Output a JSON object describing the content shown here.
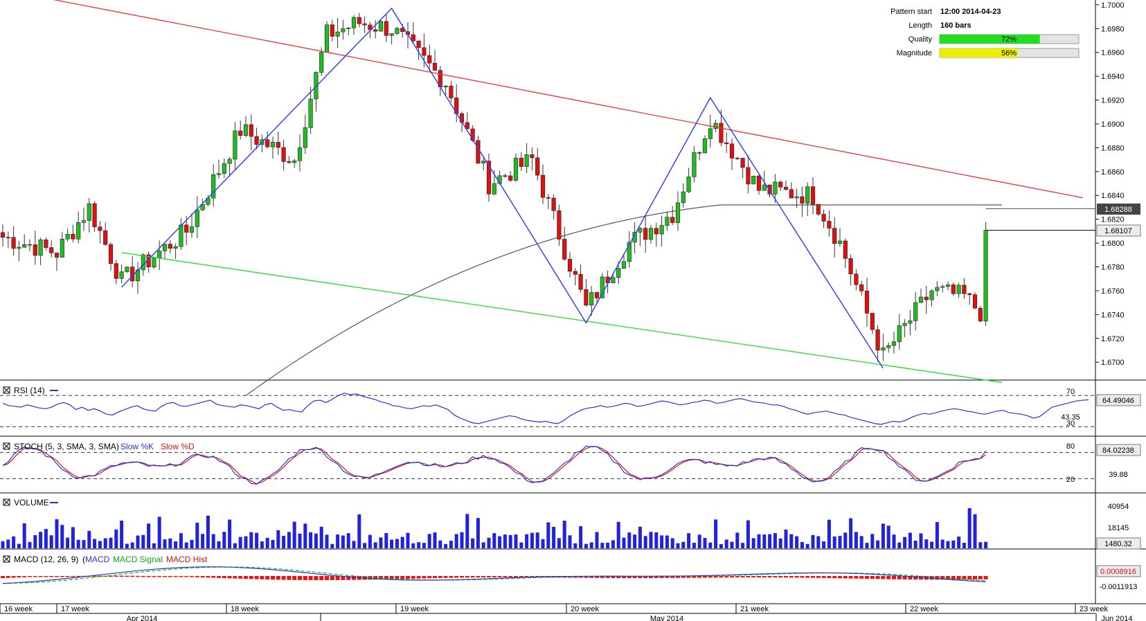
{
  "info": {
    "pattern_start_label": "Pattern start",
    "pattern_start": "12:00 2014-04-23",
    "length_label": "Length",
    "length": "160 bars",
    "quality_label": "Quality",
    "quality": "72%",
    "quality_value": 0.72,
    "magnitude_label": "Magnitude",
    "magnitude": "56%",
    "magnitude_value": 0.56,
    "quality_color": "#22dd22",
    "magnitude_color": "#eeee00"
  },
  "price": {
    "ticks": [
      "1.7000",
      "1.6980",
      "1.6960",
      "1.6940",
      "1.6920",
      "1.6900",
      "1.6880",
      "1.6860",
      "1.6840",
      "1.6820",
      "1.6800",
      "1.6780",
      "1.6760",
      "1.6740",
      "1.6720",
      "1.6700"
    ],
    "tick_values": [
      1.7,
      1.698,
      1.696,
      1.694,
      1.692,
      1.69,
      1.688,
      1.686,
      1.684,
      1.682,
      1.68,
      1.678,
      1.676,
      1.674,
      1.672,
      1.67
    ],
    "ylim": [
      1.6685,
      1.7004
    ],
    "ma_label": "1.68288",
    "ma_value": 1.68288,
    "last_label": "1.68107",
    "last_value": 1.68107,
    "colors": {
      "bull": "#22bb22",
      "bear": "#dd1111",
      "resistance": "#ee3333",
      "support": "#22dd22",
      "zigzag": "#3344ee",
      "ma": "#555555"
    }
  },
  "patterns": {
    "resistance": [
      [
        -4,
        1.7016
      ],
      [
        200,
        1.6838
      ]
    ],
    "support": [
      [
        22,
        1.6792
      ],
      [
        185,
        1.6683
      ]
    ],
    "zigzag": [
      [
        22,
        1.6763
      ],
      [
        72,
        1.6997
      ],
      [
        108,
        1.6733
      ],
      [
        131,
        1.6922
      ],
      [
        163,
        1.6695
      ]
    ]
  },
  "rsi": {
    "label": "RSI (14)",
    "level_high": "70",
    "level_mid": "43.35",
    "level_low": "30",
    "value_label": "64.49046",
    "values": [
      60,
      57,
      56,
      55,
      58,
      56,
      54,
      53,
      55,
      59,
      61,
      58,
      52,
      55,
      51,
      53,
      50,
      46,
      45,
      49,
      52,
      55,
      57,
      53,
      51,
      50,
      56,
      60,
      61,
      57,
      56,
      58,
      60,
      62,
      64,
      59,
      57,
      56,
      55,
      58,
      57,
      55,
      53,
      58,
      60,
      55,
      51,
      52,
      50,
      49,
      57,
      63,
      64,
      61,
      65,
      70,
      73,
      71,
      72,
      69,
      67,
      65,
      62,
      60,
      57,
      56,
      54,
      53,
      55,
      57,
      56,
      58,
      55,
      52,
      45,
      41,
      38,
      35,
      34,
      36,
      38,
      40,
      42,
      44,
      43,
      40,
      38,
      37,
      36,
      37,
      35,
      34,
      38,
      44,
      48,
      52,
      54,
      55,
      57,
      55,
      56,
      58,
      60,
      59,
      56,
      57,
      59,
      61,
      63,
      62,
      60,
      58,
      59,
      61,
      62,
      64,
      63,
      60,
      61,
      63,
      65,
      66,
      64,
      62,
      61,
      60,
      58,
      58,
      56,
      53,
      51,
      48,
      46,
      48,
      49,
      50,
      48,
      46,
      45,
      42,
      40,
      38,
      36,
      34,
      33,
      35,
      37,
      36,
      38,
      42,
      45,
      47,
      46,
      48,
      50,
      52,
      53,
      52,
      50,
      49,
      47,
      46,
      48,
      50,
      51,
      48,
      47,
      46,
      44,
      41,
      43,
      49,
      55,
      57,
      59,
      61,
      63,
      64,
      64.5
    ]
  },
  "stoch": {
    "label": "STOCH (5, 3, SMA, 3, SMA)",
    "k_label": "Slow %K",
    "d_label": "Slow %D",
    "level_high": "80",
    "level_mid": "39.88",
    "level_low": "20",
    "value_label": "84.02238"
  },
  "volume": {
    "label": "VOLUME",
    "level_high": "40954",
    "level_mid": "18145",
    "value_label": "1480.32"
  },
  "macd": {
    "label": "MACD (12, 26, 9)",
    "macd_label": "MACD",
    "signal_label": "MACD Signal",
    "hist_label": "MACD Hist",
    "value_label": "0.0008916",
    "low_label": "-0.0011913"
  },
  "time_axis": {
    "weeks": [
      "16 week",
      "17 week",
      "18 week",
      "19 week",
      "20 week",
      "21 week",
      "22 week",
      "23 week"
    ],
    "months": [
      "Apr 2014",
      "May 2014",
      "Jun 2014"
    ]
  }
}
